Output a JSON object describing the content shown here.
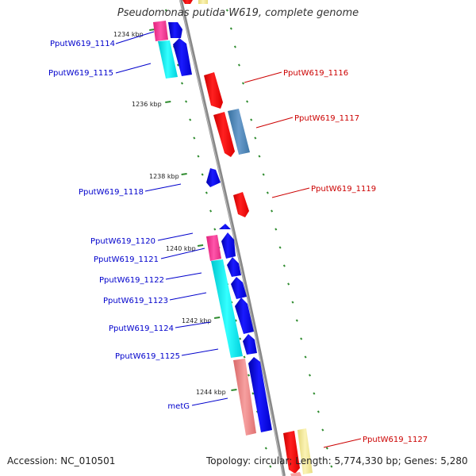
{
  "title": "Pseudomonas putida W619, complete genome",
  "accession": "Accession: NC_010501",
  "topology": "Topology: circular; Length: 5,774,330 bp; Genes: 5,280",
  "colors": {
    "forward_cds": "#0000ff",
    "reverse_cds": "#ff0000",
    "backbone": "#888888",
    "tick": "#2e8b2e",
    "label_forward": "#0000cc",
    "label_reverse": "#cc0000",
    "cog_magenta": "#ff3399",
    "cog_cyan": "#00e5ee",
    "cog_steel": "#4682b4",
    "cog_salmon": "#f08080",
    "cog_khaki": "#f0e68c"
  },
  "kbp_labels": [
    "1234 kbp",
    "1236 kbp",
    "1238 kbp",
    "1240 kbp",
    "1242 kbp",
    "1244 kbp"
  ],
  "gene_labels_left": [
    "PputW619_1114",
    "PputW619_1115",
    "PputW619_1118",
    "PputW619_1120",
    "PputW619_1121",
    "PputW619_1122",
    "PputW619_1123",
    "PputW619_1124",
    "PputW619_1125",
    "metG"
  ],
  "gene_labels_right": [
    "PputW619_1116",
    "PputW619_1117",
    "PputW619_1119",
    "PputW619_1127"
  ]
}
